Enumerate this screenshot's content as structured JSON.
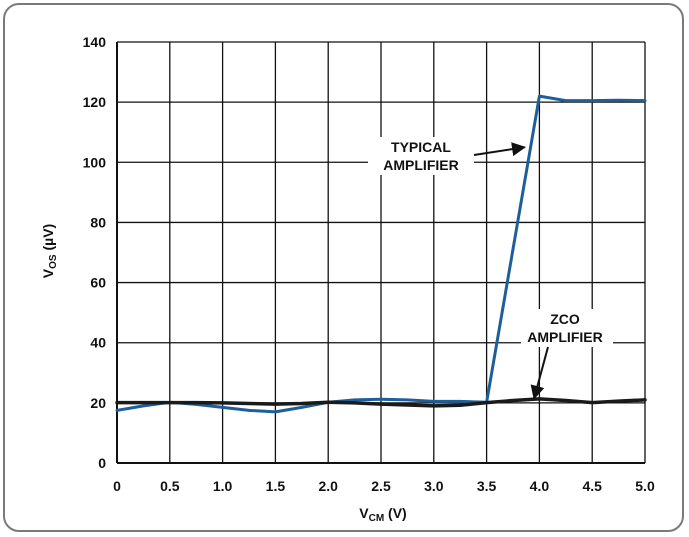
{
  "chart_data": {
    "type": "line",
    "xlabel": {
      "main": "V",
      "sub": "CM",
      "unit": " (V)"
    },
    "ylabel": {
      "main": "V",
      "sub": "OS",
      "unit": " (µV)"
    },
    "xlim": [
      0,
      5
    ],
    "ylim": [
      0,
      140
    ],
    "xticks": [
      "0",
      "0.5",
      "1.0",
      "1.5",
      "2.0",
      "2.5",
      "3.0",
      "3.5",
      "4.0",
      "4.5",
      "5.0"
    ],
    "yticks": [
      "0",
      "20",
      "40",
      "60",
      "80",
      "100",
      "120",
      "140"
    ],
    "grid": true,
    "series": [
      {
        "name": "TYPICAL AMPLIFIER",
        "color": "#1f5f99",
        "x": [
          0,
          0.25,
          0.5,
          0.75,
          1.0,
          1.25,
          1.5,
          1.75,
          2.0,
          2.25,
          2.5,
          2.75,
          3.0,
          3.25,
          3.5,
          4.0,
          4.25,
          4.5,
          4.75,
          5.0
        ],
        "y": [
          17.5,
          19,
          20.2,
          19.5,
          18.5,
          17.5,
          17,
          18.5,
          20.2,
          21,
          21.2,
          21,
          20.5,
          20.5,
          20.2,
          122,
          120.5,
          120.5,
          120.6,
          120.5
        ]
      },
      {
        "name": "ZCO AMPLIFIER",
        "color": "#1a1a1a",
        "x": [
          0,
          0.25,
          0.5,
          0.75,
          1.0,
          1.25,
          1.5,
          1.75,
          2.0,
          2.25,
          2.5,
          2.75,
          3.0,
          3.25,
          3.5,
          3.75,
          4.0,
          4.25,
          4.5,
          4.75,
          5.0
        ],
        "y": [
          20.1,
          20.1,
          20.1,
          20.1,
          20,
          19.8,
          19.6,
          19.8,
          20.2,
          20,
          19.6,
          19.3,
          19,
          19.2,
          20.1,
          20.8,
          21.3,
          20.8,
          20.1,
          20.6,
          21
        ]
      }
    ],
    "annotations": [
      {
        "lines": [
          "TYPICAL",
          "AMPLIFIER"
        ],
        "series": 0,
        "arrow_to": [
          3.86,
          105
        ]
      },
      {
        "lines": [
          "ZCO",
          "AMPLIFIER"
        ],
        "series": 1,
        "arrow_to": [
          3.95,
          21.5
        ]
      }
    ]
  }
}
